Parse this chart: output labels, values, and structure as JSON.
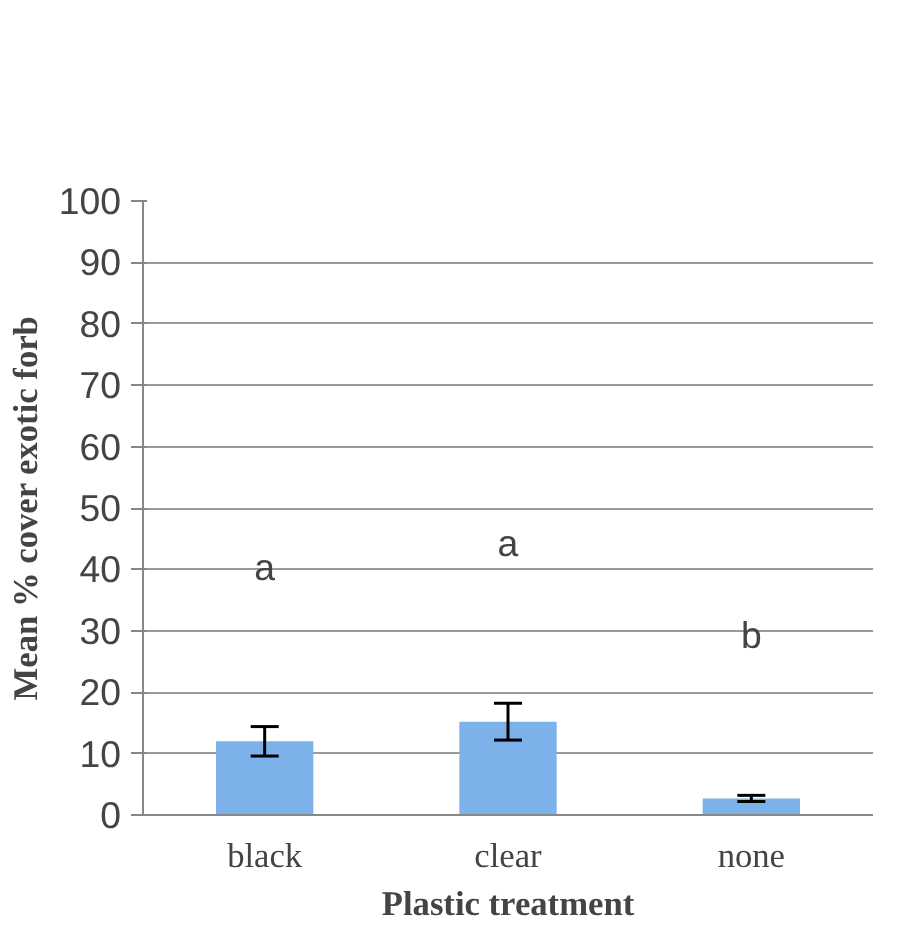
{
  "chart_data": {
    "type": "bar",
    "xlabel": "Plastic treatment",
    "ylabel": "Mean % cover exotic forb",
    "categories": [
      "black",
      "clear",
      "none"
    ],
    "values": [
      12,
      15.2,
      2.7
    ],
    "errors": [
      2.4,
      3,
      0.5
    ],
    "color": "#7db1ea",
    "ylim": [
      0,
      100
    ],
    "yticks": [
      0,
      10,
      20,
      30,
      40,
      50,
      60,
      70,
      80,
      90,
      100
    ],
    "grid": "y",
    "annotations": [
      "a",
      "a",
      "b"
    ]
  }
}
